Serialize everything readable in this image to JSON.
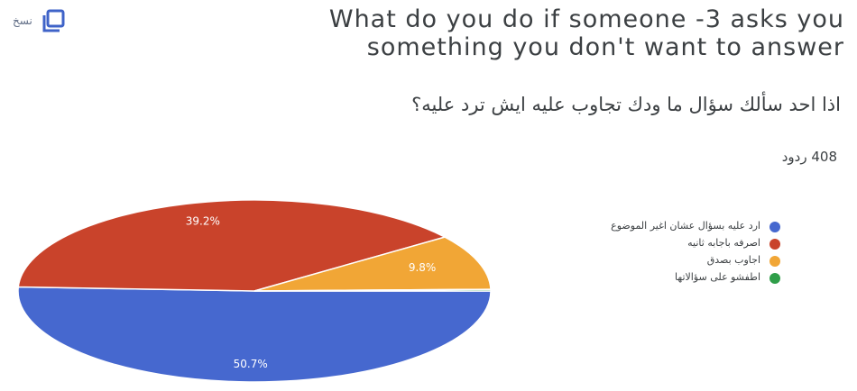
{
  "header": {
    "copy_label": "نسخ",
    "copy_icon": "copy-icon",
    "title_en": "What do you do if someone -3 asks you something you don't want to answer",
    "title_ar": "اذا احد سألك سؤال ما ودك تجاوب عليه ايش ترد عليه؟",
    "responses": "408 ردود"
  },
  "colors": {
    "blue": "#4668cf",
    "red": "#c9432b",
    "orange": "#f1a636",
    "green": "#2f9e49"
  },
  "chart_data": {
    "type": "pie",
    "labels": [
      "ارد عليه بسؤال عشان اغير الموضوع",
      "اصرفه باجابه ثانيه",
      "اجاوب بصدق",
      "اطفشو على سؤالاتها"
    ],
    "values": [
      50.7,
      39.2,
      9.8,
      0.3
    ],
    "value_labels": [
      "50.7%",
      "39.2%",
      "9.8%",
      ""
    ],
    "colors": [
      "#4668cf",
      "#c9432b",
      "#f1a636",
      "#2f9e49"
    ],
    "legend_position": "right"
  }
}
